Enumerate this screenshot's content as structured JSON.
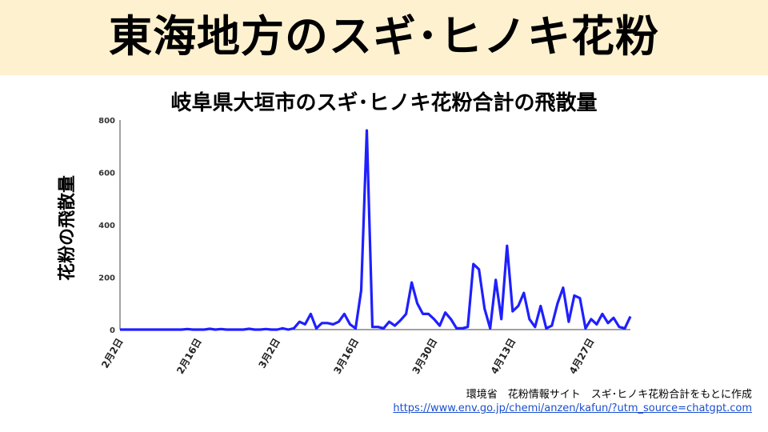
{
  "header": {
    "title": "東海地方のスギ･ヒノキ花粉"
  },
  "footer": {
    "source": "環境省　花粉情報サイト　スギ･ヒノキ花粉合計をもとに作成",
    "url": "https://www.env.go.jp/chemi/anzen/kafun/?utm_source=chatgpt.com"
  },
  "chart_data": {
    "type": "line",
    "title": "岐阜県大垣市のスギ･ヒノキ花粉合計の飛散量",
    "xlabel": "",
    "ylabel": "花粉の飛散量",
    "ylim": [
      0,
      800
    ],
    "yticks": [
      0,
      200,
      400,
      600,
      800
    ],
    "xticks": [
      "2月2日",
      "2月16日",
      "3月2日",
      "3月16日",
      "3月30日",
      "4月13日",
      "4月27日"
    ],
    "grid": false,
    "color": "#1f1fff",
    "start_label": "2月2日",
    "values": [
      0,
      0,
      0,
      0,
      0,
      0,
      0,
      0,
      0,
      0,
      0,
      0,
      2,
      0,
      0,
      0,
      3,
      0,
      2,
      0,
      0,
      0,
      0,
      3,
      0,
      0,
      2,
      0,
      0,
      5,
      0,
      5,
      30,
      20,
      60,
      5,
      25,
      25,
      20,
      30,
      60,
      20,
      5,
      150,
      760,
      10,
      10,
      5,
      30,
      15,
      35,
      60,
      180,
      100,
      60,
      60,
      40,
      15,
      65,
      40,
      5,
      5,
      10,
      250,
      230,
      80,
      5,
      190,
      40,
      320,
      70,
      90,
      140,
      40,
      10,
      90,
      5,
      15,
      100,
      160,
      30,
      130,
      120,
      5,
      40,
      20,
      60,
      25,
      45,
      10,
      5,
      50
    ]
  }
}
